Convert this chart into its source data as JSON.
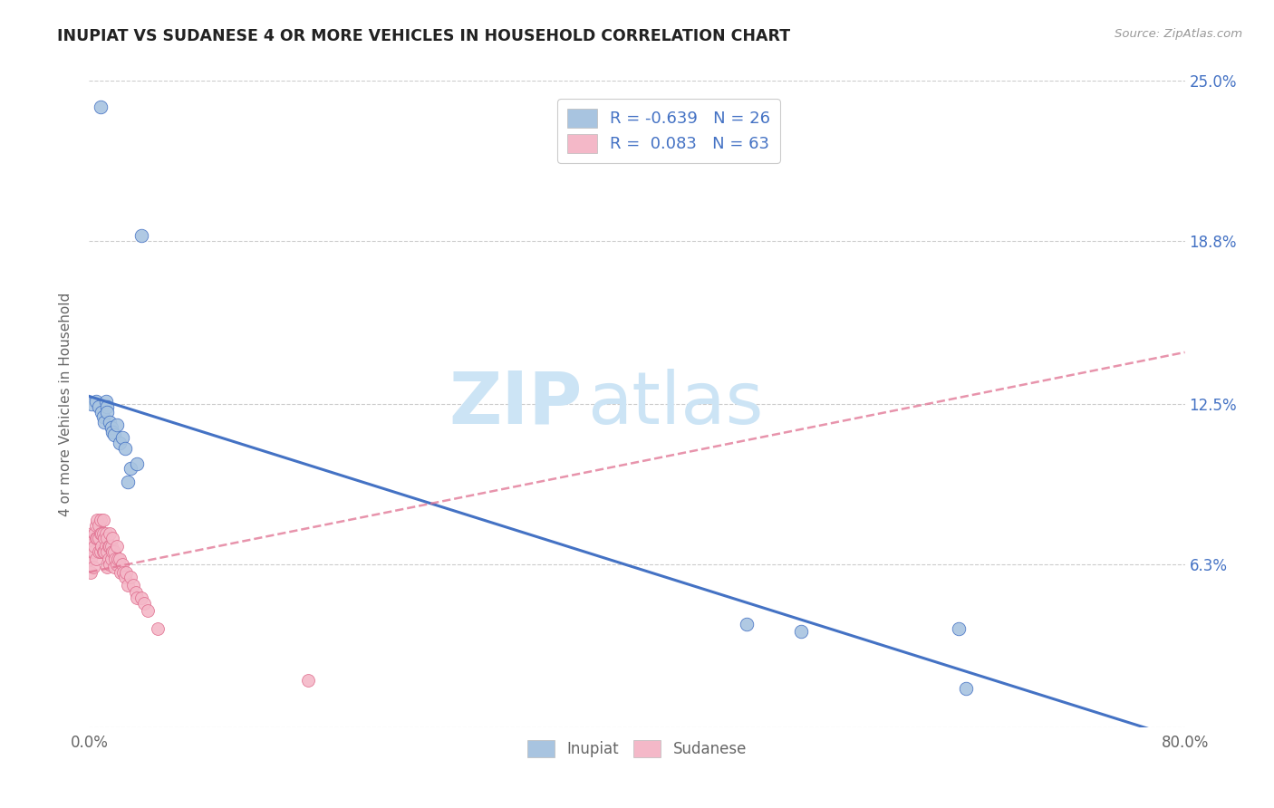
{
  "title": "INUPIAT VS SUDANESE 4 OR MORE VEHICLES IN HOUSEHOLD CORRELATION CHART",
  "source": "Source: ZipAtlas.com",
  "ylabel": "4 or more Vehicles in Household",
  "xlim": [
    0.0,
    0.8
  ],
  "ylim": [
    0.0,
    0.25
  ],
  "xtick_positions": [
    0.0,
    0.1,
    0.2,
    0.3,
    0.4,
    0.5,
    0.6,
    0.7,
    0.8
  ],
  "xticklabels": [
    "0.0%",
    "",
    "",
    "",
    "",
    "",
    "",
    "",
    "80.0%"
  ],
  "ytick_positions": [
    0.0,
    0.063,
    0.125,
    0.188,
    0.25
  ],
  "yticklabels_right": [
    "",
    "6.3%",
    "12.5%",
    "18.8%",
    "25.0%"
  ],
  "legend_r_inupiat": "-0.639",
  "legend_n_inupiat": "26",
  "legend_r_sudanese": "0.083",
  "legend_n_sudanese": "63",
  "inupiat_color": "#a8c4e0",
  "sudanese_color": "#f4b8c8",
  "inupiat_line_color": "#4472c4",
  "sudanese_line_color": "#e07090",
  "watermark_zip": "ZIP",
  "watermark_atlas": "atlas",
  "inupiat_x": [
    0.002,
    0.005,
    0.007,
    0.008,
    0.009,
    0.01,
    0.011,
    0.012,
    0.013,
    0.013,
    0.015,
    0.016,
    0.017,
    0.018,
    0.02,
    0.022,
    0.024,
    0.026,
    0.028,
    0.03,
    0.035,
    0.038,
    0.48,
    0.52,
    0.635,
    0.64
  ],
  "inupiat_y": [
    0.125,
    0.126,
    0.124,
    0.24,
    0.122,
    0.12,
    0.118,
    0.126,
    0.124,
    0.122,
    0.118,
    0.116,
    0.114,
    0.113,
    0.117,
    0.11,
    0.112,
    0.108,
    0.095,
    0.1,
    0.102,
    0.19,
    0.04,
    0.037,
    0.038,
    0.015
  ],
  "sudanese_x": [
    0.001,
    0.001,
    0.002,
    0.002,
    0.003,
    0.003,
    0.003,
    0.004,
    0.004,
    0.005,
    0.005,
    0.005,
    0.006,
    0.006,
    0.007,
    0.007,
    0.007,
    0.008,
    0.008,
    0.008,
    0.009,
    0.009,
    0.01,
    0.01,
    0.01,
    0.011,
    0.011,
    0.012,
    0.012,
    0.013,
    0.013,
    0.013,
    0.014,
    0.014,
    0.015,
    0.015,
    0.015,
    0.016,
    0.016,
    0.017,
    0.017,
    0.018,
    0.018,
    0.019,
    0.02,
    0.02,
    0.021,
    0.022,
    0.023,
    0.024,
    0.025,
    0.026,
    0.027,
    0.028,
    0.03,
    0.032,
    0.034,
    0.035,
    0.038,
    0.04,
    0.043,
    0.05,
    0.16
  ],
  "sudanese_y": [
    0.065,
    0.06,
    0.075,
    0.068,
    0.072,
    0.068,
    0.062,
    0.075,
    0.07,
    0.078,
    0.073,
    0.065,
    0.08,
    0.073,
    0.078,
    0.073,
    0.068,
    0.08,
    0.075,
    0.068,
    0.075,
    0.07,
    0.08,
    0.075,
    0.068,
    0.073,
    0.068,
    0.075,
    0.07,
    0.073,
    0.068,
    0.062,
    0.07,
    0.065,
    0.075,
    0.07,
    0.063,
    0.07,
    0.065,
    0.073,
    0.068,
    0.068,
    0.062,
    0.065,
    0.07,
    0.063,
    0.065,
    0.065,
    0.06,
    0.063,
    0.06,
    0.058,
    0.06,
    0.055,
    0.058,
    0.055,
    0.052,
    0.05,
    0.05,
    0.048,
    0.045,
    0.038,
    0.018
  ],
  "inupiat_line_start_y": 0.128,
  "inupiat_line_end_y": -0.005,
  "sudanese_line_start_x": 0.0,
  "sudanese_line_start_y": 0.06,
  "sudanese_line_end_x": 0.8,
  "sudanese_line_end_y": 0.145
}
